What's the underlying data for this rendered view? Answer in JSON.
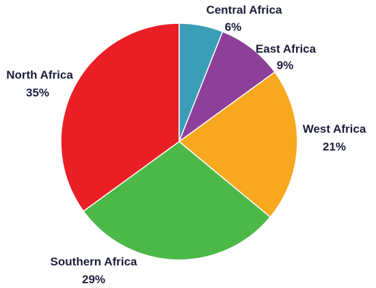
{
  "chart_data": {
    "type": "pie",
    "slices": [
      {
        "label": "Central Africa",
        "value": 6,
        "value_label": "6%",
        "color": "#3a9fb6"
      },
      {
        "label": "East Africa",
        "value": 9,
        "value_label": "9%",
        "color": "#8e3f9a"
      },
      {
        "label": "West Africa",
        "value": 21,
        "value_label": "21%",
        "color": "#f7a81f"
      },
      {
        "label": "Southern Africa",
        "value": 29,
        "value_label": "29%",
        "color": "#4cb848"
      },
      {
        "label": "North Africa",
        "value": 35,
        "value_label": "35%",
        "color": "#ea1f25"
      }
    ],
    "start_angle": "12 o'clock",
    "direction": "clockwise",
    "legend": "none"
  }
}
